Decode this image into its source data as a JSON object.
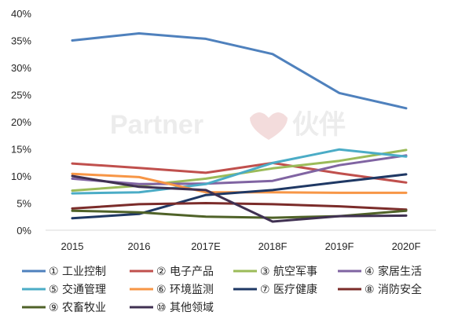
{
  "chart_data": {
    "type": "line",
    "title": "",
    "xlabel": "",
    "ylabel": "",
    "ylim": [
      0,
      40
    ],
    "y_tick_format": "percent",
    "y_ticks": [
      0,
      5,
      10,
      15,
      20,
      25,
      30,
      35,
      40
    ],
    "grid": false,
    "legend_position": "bottom",
    "categories": [
      "2015",
      "2016",
      "2017E",
      "2018F",
      "2019F",
      "2020F"
    ],
    "series": [
      {
        "name": "① 工业控制",
        "color": "#4f81bd",
        "values": [
          35,
          36.3,
          35.3,
          32.5,
          25.3,
          22.5
        ]
      },
      {
        "name": "② 电子产品",
        "color": "#c0504d",
        "values": [
          12.3,
          11.5,
          10.6,
          12.4,
          10.5,
          8.8
        ]
      },
      {
        "name": "③ 航空军事",
        "color": "#9bbb59",
        "values": [
          7.3,
          8.2,
          9.5,
          11.4,
          12.8,
          14.8
        ]
      },
      {
        "name": "④ 家居生活",
        "color": "#8064a2",
        "values": [
          9.5,
          8.5,
          8.6,
          9.1,
          12.0,
          13.8
        ]
      },
      {
        "name": "⑤ 交通管理",
        "color": "#4bacc6",
        "values": [
          6.8,
          7.0,
          8.5,
          12.4,
          14.9,
          13.6
        ]
      },
      {
        "name": "⑥ 环境监测",
        "color": "#f79646",
        "values": [
          10.4,
          9.8,
          7.0,
          7.0,
          6.9,
          6.9
        ]
      },
      {
        "name": "⑦ 医疗健康",
        "color": "#1f3864",
        "values": [
          2.2,
          3.0,
          6.5,
          7.4,
          8.9,
          10.3
        ]
      },
      {
        "name": "⑧ 消防安全",
        "color": "#7b2c2a",
        "values": [
          4.0,
          4.8,
          5.0,
          4.8,
          4.4,
          3.8
        ]
      },
      {
        "name": "⑨ 农畜牧业",
        "color": "#4f6228",
        "values": [
          3.6,
          3.3,
          2.5,
          2.3,
          2.6,
          3.6
        ]
      },
      {
        "name": "⑩ 其他领域",
        "color": "#403152",
        "values": [
          10.0,
          8.0,
          7.4,
          1.6,
          2.6,
          2.7
        ]
      }
    ]
  },
  "watermark": {
    "brand": "Partner",
    "cn": "伙伴"
  }
}
